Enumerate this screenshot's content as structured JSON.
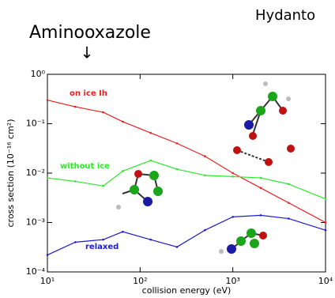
{
  "header": {
    "left_label": "Aminooxazole",
    "arrow": "↓",
    "right_label": "Hydanto"
  },
  "chart_data": {
    "type": "line",
    "xlabel": "collision energy (eV)",
    "ylabel": "cross section (10⁻¹⁶ cm²)",
    "x": [
      10,
      20,
      40,
      65,
      130,
      250,
      500,
      1000,
      2000,
      4000,
      10000
    ],
    "series": [
      {
        "name": "on ice Ih",
        "color": "#e8201e",
        "values": [
          0.3,
          0.22,
          0.17,
          0.11,
          0.065,
          0.04,
          0.022,
          0.01,
          0.005,
          0.0025,
          0.001
        ]
      },
      {
        "name": "without ice",
        "color": "#2ee82e",
        "values": [
          0.008,
          0.0068,
          0.0055,
          0.011,
          0.018,
          0.012,
          0.009,
          0.0085,
          0.008,
          0.006,
          0.003
        ]
      },
      {
        "name": "relaxed",
        "color": "#1c1ccc",
        "values": [
          0.00022,
          0.0004,
          0.00045,
          0.00065,
          0.00045,
          0.00032,
          0.0007,
          0.0013,
          0.0014,
          0.0012,
          0.0007
        ]
      }
    ],
    "log_x": true,
    "log_y": true,
    "xlim": [
      10,
      10000
    ],
    "ylim": [
      0.0001,
      1
    ],
    "xticks": [
      {
        "value": 10,
        "label": "10¹"
      },
      {
        "value": 100,
        "label": "10²"
      },
      {
        "value": 1000,
        "label": "10³"
      },
      {
        "value": 10000,
        "label": "10⁴"
      }
    ],
    "yticks": [
      {
        "value": 0.0001,
        "label": "10⁻⁴"
      },
      {
        "value": 0.001,
        "label": "10⁻³"
      },
      {
        "value": 0.01,
        "label": "10⁻²"
      },
      {
        "value": 0.1,
        "label": "10⁻¹"
      },
      {
        "value": 1,
        "label": "10⁰"
      }
    ]
  }
}
